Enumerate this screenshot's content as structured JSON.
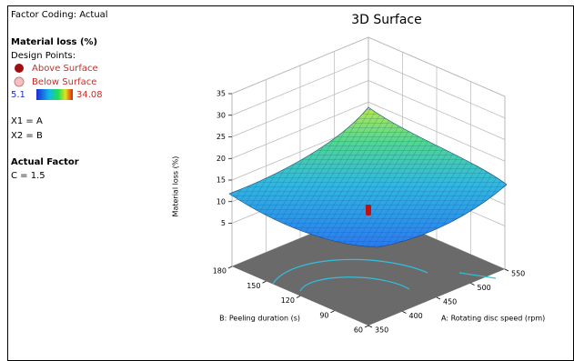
{
  "panel": {
    "coding": "Factor Coding: Actual",
    "response": "Material loss (%)",
    "design_points": "Design Points:",
    "above": "Above Surface",
    "below": "Below Surface",
    "scale_min": "5.1",
    "scale_max": "34.08",
    "x1": "X1 = A",
    "x2": "X2 = B",
    "actual_factor": "Actual Factor",
    "c": "C = 1.5"
  },
  "chart_data": {
    "type": "surface",
    "title": "3D Surface",
    "xlabel": "A: Rotating disc speed (rpm)",
    "ylabel": "B: Peeling duration (s)",
    "zlabel": "Material loss (%)",
    "xlim": [
      350,
      550
    ],
    "xticks": [
      350,
      400,
      450,
      500,
      550
    ],
    "ylim": [
      60,
      180
    ],
    "yticks": [
      60,
      90,
      120,
      150,
      180
    ],
    "zlim": [
      -5,
      35
    ],
    "zticks": [
      5,
      10,
      15,
      20,
      25,
      30,
      35
    ]
  }
}
